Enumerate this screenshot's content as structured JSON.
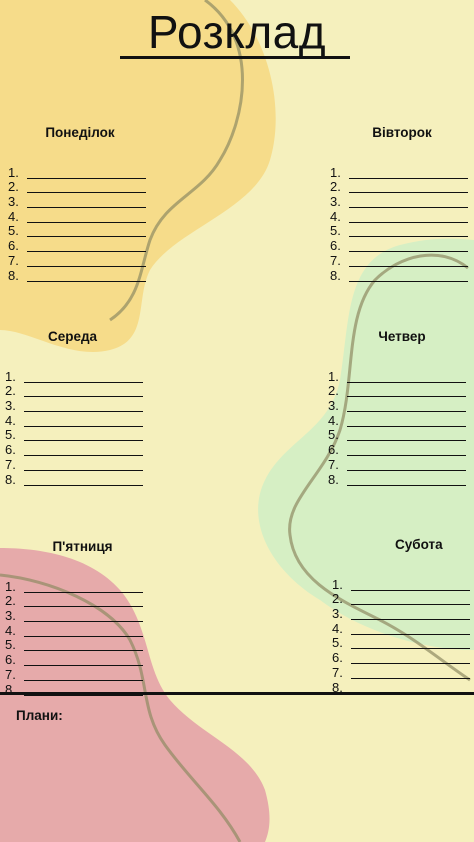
{
  "title": "Розклад",
  "days": [
    {
      "name": "Понеділок",
      "slots": [
        "1.",
        "2.",
        "3.",
        "4.",
        "5.",
        "6.",
        "7.",
        "8."
      ]
    },
    {
      "name": "Вівторок",
      "slots": [
        "1.",
        "2.",
        "3.",
        "4.",
        "5.",
        "6.",
        "7.",
        "8."
      ]
    },
    {
      "name": "Середа",
      "slots": [
        "1.",
        "2.",
        "3.",
        "4.",
        "5.",
        "6.",
        "7.",
        "8."
      ]
    },
    {
      "name": "Четвер",
      "slots": [
        "1.",
        "2.",
        "3.",
        "4.",
        "5.",
        "6.",
        "7.",
        "8."
      ]
    },
    {
      "name": "П'ятниця",
      "slots": [
        "1.",
        "2.",
        "3.",
        "4.",
        "5.",
        "6.",
        "7.",
        "8."
      ]
    },
    {
      "name": "Субота",
      "slots": [
        "1.",
        "2.",
        "3.",
        "4.",
        "5.",
        "6.",
        "7.",
        "8."
      ]
    }
  ],
  "plans_label": "Плани:",
  "colors": {
    "background": "#f5f0bd",
    "blob_yellow": "#f6dc8a",
    "blob_green": "#d6efc4",
    "blob_pink": "#e6aaaa",
    "squiggle": "#8f8a62"
  }
}
